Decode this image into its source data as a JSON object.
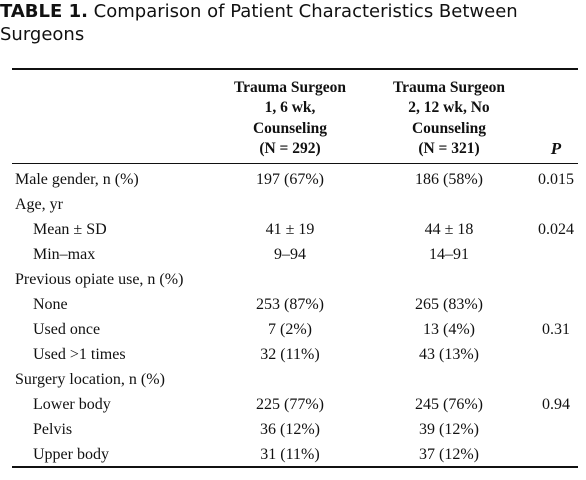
{
  "header": {
    "label": "TABLE 1.",
    "title": "Comparison of Patient Characteristics Between Surgeons"
  },
  "table": {
    "columns": [
      [
        "Trauma Surgeon",
        "1, 6 wk,",
        "Counseling",
        "(N = 292)"
      ],
      [
        "Trauma Surgeon",
        "2, 12 wk, No",
        "Counseling",
        "(N = 321)"
      ],
      [
        "P"
      ]
    ],
    "rows": [
      {
        "label": "Male gender, n (%)",
        "cells": [
          "197 (67%)",
          "186 (58%)",
          "0.015"
        ]
      },
      {
        "label": "Age, yr",
        "rows": [
          {
            "label": "Mean ± SD",
            "cells": [
              "41 ± 19",
              "44 ± 18",
              "0.024"
            ]
          },
          {
            "label": "Min–max",
            "cells": [
              "9–94",
              "14–91"
            ]
          }
        ]
      },
      {
        "label": "Previous opiate use, n (%)",
        "rows": [
          {
            "label": "None",
            "cells": [
              "253 (87%)",
              "265 (83%)"
            ]
          },
          {
            "label": "Used once",
            "cells": [
              "7 (2%)",
              "13 (4%)",
              "0.31"
            ]
          },
          {
            "label": "Used >1 times",
            "cells": [
              "32 (11%)",
              "43 (13%)"
            ]
          }
        ]
      },
      {
        "label": "Surgery location, n (%)",
        "rows": [
          {
            "label": "Lower body",
            "cells": [
              "225 (77%)",
              "245 (76%)",
              "0.94"
            ]
          },
          {
            "label": "Pelvis",
            "cells": [
              "36 (12%)",
              "39 (12%)"
            ]
          },
          {
            "label": "Upper body",
            "cells": [
              "31 (11%)",
              "37 (12%)"
            ]
          }
        ]
      }
    ]
  }
}
